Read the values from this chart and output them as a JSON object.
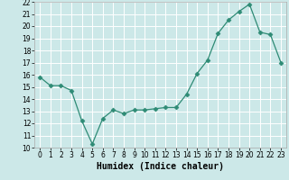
{
  "title": "",
  "xlabel": "Humidex (Indice chaleur)",
  "x": [
    0,
    1,
    2,
    3,
    4,
    5,
    6,
    7,
    8,
    9,
    10,
    11,
    12,
    13,
    14,
    15,
    16,
    17,
    18,
    19,
    20,
    21,
    22,
    23
  ],
  "y": [
    15.8,
    15.1,
    15.1,
    14.7,
    12.2,
    10.3,
    12.4,
    13.1,
    12.8,
    13.1,
    13.1,
    13.2,
    13.3,
    13.3,
    14.4,
    16.1,
    17.2,
    19.4,
    20.5,
    21.2,
    21.8,
    19.5,
    19.3,
    17.0
  ],
  "line_color": "#2e8b75",
  "marker": "D",
  "marker_size": 2.5,
  "bg_color": "#cce8e8",
  "grid_color": "#ffffff",
  "ylim": [
    10,
    22
  ],
  "xlim": [
    -0.5,
    23.5
  ],
  "yticks": [
    10,
    11,
    12,
    13,
    14,
    15,
    16,
    17,
    18,
    19,
    20,
    21,
    22
  ],
  "xticks": [
    0,
    1,
    2,
    3,
    4,
    5,
    6,
    7,
    8,
    9,
    10,
    11,
    12,
    13,
    14,
    15,
    16,
    17,
    18,
    19,
    20,
    21,
    22,
    23
  ],
  "tick_fontsize": 5.5,
  "xlabel_fontsize": 7,
  "linewidth": 0.9
}
